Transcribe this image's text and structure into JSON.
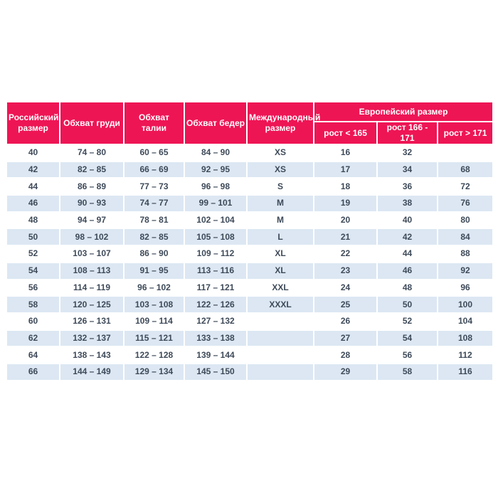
{
  "table": {
    "header": {
      "russian_size": "Российский размер",
      "chest": "Обхват груди",
      "waist": "Обхват талии",
      "hips": "Обхват бедер",
      "international": "Международный размер",
      "european_group": "Европейский размер",
      "height_lt_165": "рост < 165",
      "height_166_171": "рост 166 - 171",
      "height_gt_171": "рост > 171"
    },
    "rows": [
      [
        "40",
        "74 – 80",
        "60 – 65",
        "84 – 90",
        "XS",
        "16",
        "32",
        ""
      ],
      [
        "42",
        "82 – 85",
        "66 – 69",
        "92 – 95",
        "XS",
        "17",
        "34",
        "68"
      ],
      [
        "44",
        "86 – 89",
        "77 – 73",
        "96 – 98",
        "S",
        "18",
        "36",
        "72"
      ],
      [
        "46",
        "90 – 93",
        "74 – 77",
        "99 – 101",
        "M",
        "19",
        "38",
        "76"
      ],
      [
        "48",
        "94 – 97",
        "78 – 81",
        "102 – 104",
        "M",
        "20",
        "40",
        "80"
      ],
      [
        "50",
        "98 – 102",
        "82 – 85",
        "105 – 108",
        "L",
        "21",
        "42",
        "84"
      ],
      [
        "52",
        "103 – 107",
        "86 – 90",
        "109 – 112",
        "XL",
        "22",
        "44",
        "88"
      ],
      [
        "54",
        "108 – 113",
        "91 – 95",
        "113 – 116",
        "XL",
        "23",
        "46",
        "92"
      ],
      [
        "56",
        "114 – 119",
        "96 – 102",
        "117 – 121",
        "XXL",
        "24",
        "48",
        "96"
      ],
      [
        "58",
        "120 – 125",
        "103 – 108",
        "122 – 126",
        "XXXL",
        "25",
        "50",
        "100"
      ],
      [
        "60",
        "126 – 131",
        "109 – 114",
        "127 – 132",
        "",
        "26",
        "52",
        "104"
      ],
      [
        "62",
        "132 – 137",
        "115 – 121",
        "133 – 138",
        "",
        "27",
        "54",
        "108"
      ],
      [
        "64",
        "138 – 143",
        "122 – 128",
        "139 – 144",
        "",
        "28",
        "56",
        "112"
      ],
      [
        "66",
        "144 – 149",
        "129 – 134",
        "145 – 150",
        "",
        "29",
        "58",
        "116"
      ]
    ],
    "colors": {
      "header_bg": "#EE1555",
      "header_text": "#FFFFFF",
      "stripe_bg": "#DCE7F3",
      "cell_text": "#3E4A59"
    }
  }
}
